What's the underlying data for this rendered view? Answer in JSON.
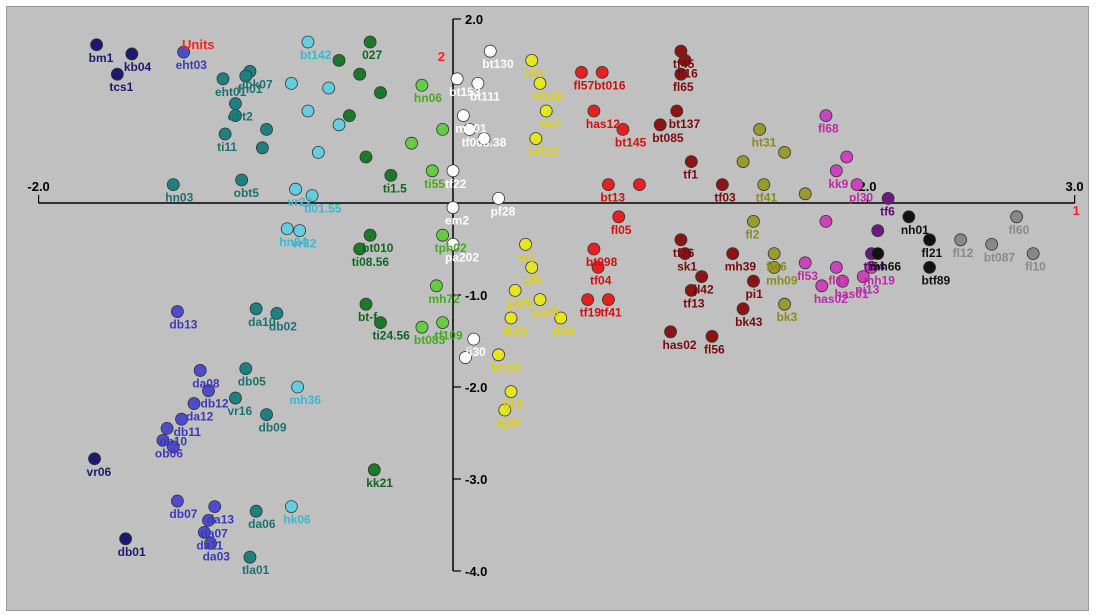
{
  "chart_data": {
    "type": "scatter",
    "title": "Units",
    "title_color": "#ff2020",
    "background": "#c0c0c0",
    "xlim": [
      -2.0,
      3.0
    ],
    "ylim": [
      -4.0,
      2.0
    ],
    "x_ticks": [
      {
        "v": -2.0,
        "label": "-2.0"
      },
      {
        "v": 2.0,
        "label": "2.0"
      },
      {
        "v": 3.0,
        "label": "3.0"
      }
    ],
    "y_ticks": [
      {
        "v": 2.0,
        "label": "2.0"
      },
      {
        "v": -1.0,
        "label": "-1.0"
      },
      {
        "v": -2.0,
        "label": "-2.0"
      },
      {
        "v": -3.0,
        "label": "-3.0"
      },
      {
        "v": -4.0,
        "label": "-4.0"
      }
    ],
    "axis_end_labels": {
      "x": "1",
      "y": "2",
      "color": "#ff2020"
    },
    "groups": [
      {
        "color": "#1a1a6e",
        "text_color": "#1a1a6e",
        "points": [
          {
            "x": -1.72,
            "y": 1.72,
            "label": "bm1"
          },
          {
            "x": -1.55,
            "y": 1.62,
            "label": "kb04"
          },
          {
            "x": -1.62,
            "y": 1.4,
            "label": "tcs1"
          },
          {
            "x": -1.73,
            "y": -2.78,
            "label": "vr06"
          },
          {
            "x": -1.58,
            "y": -3.65,
            "label": "db01"
          }
        ]
      },
      {
        "color": "#4d4dcc",
        "text_color": "#3a3ab8",
        "points": [
          {
            "x": -1.3,
            "y": 1.64,
            "label": "eht03"
          },
          {
            "x": -1.33,
            "y": -1.18,
            "label": "db13"
          },
          {
            "x": -1.22,
            "y": -1.82,
            "label": "da08"
          },
          {
            "x": -1.18,
            "y": -2.04,
            "label": "db12"
          },
          {
            "x": -1.25,
            "y": -2.18,
            "label": "da12"
          },
          {
            "x": -1.38,
            "y": -2.45,
            "label": "ob10"
          },
          {
            "x": -1.4,
            "y": -2.58,
            "label": "ob06"
          },
          {
            "x": -1.33,
            "y": -3.24,
            "label": "db07"
          },
          {
            "x": -1.15,
            "y": -3.3,
            "label": "da13"
          },
          {
            "x": -1.18,
            "y": -3.45,
            "label": "da07"
          },
          {
            "x": -1.2,
            "y": -3.58,
            "label": "da11"
          },
          {
            "x": -1.17,
            "y": -3.7,
            "label": "da03"
          },
          {
            "x": -1.31,
            "y": -2.35,
            "label": "db11"
          },
          {
            "x": -1.35,
            "y": -2.65,
            "label": ""
          }
        ]
      },
      {
        "color": "#1e8080",
        "text_color": "#1e7070",
        "points": [
          {
            "x": -0.98,
            "y": 1.43,
            "label": "lbk07"
          },
          {
            "x": -1.11,
            "y": 1.35,
            "label": "eht01"
          },
          {
            "x": -1.0,
            "y": 1.38,
            "label": "fh01"
          },
          {
            "x": -1.05,
            "y": 1.08,
            "label": "obt2"
          },
          {
            "x": -1.1,
            "y": 0.75,
            "label": "ti11"
          },
          {
            "x": -1.35,
            "y": 0.2,
            "label": "hn03"
          },
          {
            "x": -1.02,
            "y": 0.25,
            "label": "obt5"
          },
          {
            "x": -0.95,
            "y": -1.15,
            "label": "da10"
          },
          {
            "x": -0.85,
            "y": -1.2,
            "label": "db02"
          },
          {
            "x": -1.0,
            "y": -1.8,
            "label": "db05"
          },
          {
            "x": -1.05,
            "y": -2.12,
            "label": "vr16"
          },
          {
            "x": -0.9,
            "y": -2.3,
            "label": "db09"
          },
          {
            "x": -0.95,
            "y": -3.35,
            "label": "da06"
          },
          {
            "x": -0.98,
            "y": -3.85,
            "label": "tla01"
          },
          {
            "x": -0.9,
            "y": 0.8,
            "label": ""
          },
          {
            "x": -1.05,
            "y": 0.95,
            "label": ""
          },
          {
            "x": -0.92,
            "y": 0.6,
            "label": ""
          }
        ]
      },
      {
        "color": "#66cce0",
        "text_color": "#3ab8d0",
        "points": [
          {
            "x": -0.7,
            "y": 1.75,
            "label": "bt142"
          },
          {
            "x": -0.76,
            "y": 0.15,
            "label": "vr22"
          },
          {
            "x": -0.68,
            "y": 0.08,
            "label": "ti01.55"
          },
          {
            "x": -0.8,
            "y": -0.28,
            "label": "hn04"
          },
          {
            "x": -0.74,
            "y": -0.3,
            "label": "vr32"
          },
          {
            "x": -0.75,
            "y": -2.0,
            "label": "mh36"
          },
          {
            "x": -0.78,
            "y": -3.3,
            "label": "hk06"
          },
          {
            "x": -0.6,
            "y": 1.25,
            "label": ""
          },
          {
            "x": -0.7,
            "y": 1.0,
            "label": ""
          },
          {
            "x": -0.55,
            "y": 0.85,
            "label": ""
          },
          {
            "x": -0.78,
            "y": 1.3,
            "label": ""
          },
          {
            "x": -0.65,
            "y": 0.55,
            "label": ""
          }
        ]
      },
      {
        "color": "#1a7a2a",
        "text_color": "#116620",
        "points": [
          {
            "x": -0.4,
            "y": 1.75,
            "label": "027"
          },
          {
            "x": -0.55,
            "y": 1.55,
            "label": ""
          },
          {
            "x": -0.45,
            "y": 1.4,
            "label": ""
          },
          {
            "x": -0.35,
            "y": 1.2,
            "label": ""
          },
          {
            "x": -0.5,
            "y": 0.95,
            "label": ""
          },
          {
            "x": -0.42,
            "y": 0.5,
            "label": ""
          },
          {
            "x": -0.3,
            "y": 0.3,
            "label": "ti1.5"
          },
          {
            "x": -0.4,
            "y": -0.35,
            "label": "bt010"
          },
          {
            "x": -0.45,
            "y": -0.5,
            "label": "ti08.56"
          },
          {
            "x": -0.42,
            "y": -1.1,
            "label": "bt-f"
          },
          {
            "x": -0.35,
            "y": -1.3,
            "label": "ti24.56"
          },
          {
            "x": -0.38,
            "y": -2.9,
            "label": "kk21"
          }
        ]
      },
      {
        "color": "#66cc44",
        "text_color": "#44aa22",
        "points": [
          {
            "x": -0.15,
            "y": 1.28,
            "label": "hn06"
          },
          {
            "x": -0.05,
            "y": 0.8,
            "label": ""
          },
          {
            "x": -0.2,
            "y": 0.65,
            "label": ""
          },
          {
            "x": -0.1,
            "y": 0.35,
            "label": "ti55"
          },
          {
            "x": -0.05,
            "y": -0.35,
            "label": "tph02"
          },
          {
            "x": -0.08,
            "y": -0.9,
            "label": "mh72"
          },
          {
            "x": -0.15,
            "y": -1.35,
            "label": "bt083"
          },
          {
            "x": -0.05,
            "y": -1.3,
            "label": "tf109"
          }
        ]
      },
      {
        "color": "#ffffff",
        "text_color": "#ffffff",
        "points": [
          {
            "x": 0.18,
            "y": 1.65,
            "label": "bt130"
          },
          {
            "x": 0.02,
            "y": 1.35,
            "label": "bt153"
          },
          {
            "x": 0.12,
            "y": 1.3,
            "label": "bt111"
          },
          {
            "x": 0.05,
            "y": 0.95,
            "label": "mh01"
          },
          {
            "x": 0.08,
            "y": 0.8,
            "label": "tf003.38"
          },
          {
            "x": 0.0,
            "y": 0.35,
            "label": "tf22"
          },
          {
            "x": 0.0,
            "y": -0.05,
            "label": "em2"
          },
          {
            "x": 0.22,
            "y": 0.05,
            "label": "pf28"
          },
          {
            "x": 0.0,
            "y": -0.45,
            "label": "pa202"
          },
          {
            "x": 0.1,
            "y": -1.48,
            "label": "ji30"
          },
          {
            "x": 0.06,
            "y": -1.68,
            "label": ""
          },
          {
            "x": 0.15,
            "y": 0.7,
            "label": ""
          }
        ]
      },
      {
        "color": "#e6e620",
        "text_color": "#e0d010",
        "points": [
          {
            "x": 0.38,
            "y": 1.55,
            "label": "tf97"
          },
          {
            "x": 0.42,
            "y": 1.3,
            "label": "bt140"
          },
          {
            "x": 0.45,
            "y": 1.0,
            "label": "mc1"
          },
          {
            "x": 0.4,
            "y": 0.7,
            "label": "bt112"
          },
          {
            "x": 0.35,
            "y": -0.45,
            "label": "m1"
          },
          {
            "x": 0.38,
            "y": -0.7,
            "label": "pf0"
          },
          {
            "x": 0.3,
            "y": -0.95,
            "label": "pf29"
          },
          {
            "x": 0.42,
            "y": -1.05,
            "label": "pa28"
          },
          {
            "x": 0.28,
            "y": -1.25,
            "label": "tk22"
          },
          {
            "x": 0.52,
            "y": -1.25,
            "label": "tf44"
          },
          {
            "x": 0.22,
            "y": -1.65,
            "label": "bt151"
          },
          {
            "x": 0.28,
            "y": -2.05,
            "label": "lj18"
          },
          {
            "x": 0.25,
            "y": -2.25,
            "label": "bj09"
          }
        ]
      },
      {
        "color": "#e62020",
        "text_color": "#d01010",
        "points": [
          {
            "x": 0.62,
            "y": 1.42,
            "label": "fl57"
          },
          {
            "x": 0.72,
            "y": 1.42,
            "label": "bt016"
          },
          {
            "x": 0.68,
            "y": 1.0,
            "label": "has12"
          },
          {
            "x": 0.82,
            "y": 0.8,
            "label": "bt145"
          },
          {
            "x": 0.75,
            "y": 0.2,
            "label": "bt13"
          },
          {
            "x": 0.8,
            "y": -0.15,
            "label": "fl05"
          },
          {
            "x": 0.68,
            "y": -0.5,
            "label": "bt098"
          },
          {
            "x": 0.7,
            "y": -0.7,
            "label": "tf04"
          },
          {
            "x": 0.65,
            "y": -1.05,
            "label": "tf19"
          },
          {
            "x": 0.75,
            "y": -1.05,
            "label": "tf41"
          },
          {
            "x": 0.9,
            "y": 0.2,
            "label": ""
          }
        ]
      },
      {
        "color": "#8c1414",
        "text_color": "#7a0a0a",
        "points": [
          {
            "x": 1.1,
            "y": 1.65,
            "label": "tf45"
          },
          {
            "x": 1.12,
            "y": 1.55,
            "label": "fl16"
          },
          {
            "x": 1.1,
            "y": 1.4,
            "label": "fl65"
          },
          {
            "x": 1.08,
            "y": 1.0,
            "label": "bt137"
          },
          {
            "x": 1.0,
            "y": 0.85,
            "label": "bt085"
          },
          {
            "x": 1.15,
            "y": 0.45,
            "label": "tf1"
          },
          {
            "x": 1.1,
            "y": -0.4,
            "label": "tf26"
          },
          {
            "x": 1.12,
            "y": -0.55,
            "label": "sk1"
          },
          {
            "x": 1.2,
            "y": -0.8,
            "label": "jl42"
          },
          {
            "x": 1.15,
            "y": -0.95,
            "label": "tf13"
          },
          {
            "x": 1.35,
            "y": -0.55,
            "label": "mh39"
          },
          {
            "x": 1.45,
            "y": -0.85,
            "label": "pi1"
          },
          {
            "x": 1.4,
            "y": -1.15,
            "label": "bk43"
          },
          {
            "x": 1.05,
            "y": -1.4,
            "label": "has02"
          },
          {
            "x": 1.25,
            "y": -1.45,
            "label": "fl56"
          },
          {
            "x": 1.3,
            "y": 0.2,
            "label": "tf03"
          }
        ]
      },
      {
        "color": "#9a9a2e",
        "text_color": "#8a8a1e",
        "points": [
          {
            "x": 1.48,
            "y": 0.8,
            "label": "ht31"
          },
          {
            "x": 1.6,
            "y": 0.55,
            "label": ""
          },
          {
            "x": 1.5,
            "y": 0.2,
            "label": "tf41"
          },
          {
            "x": 1.45,
            "y": -0.2,
            "label": "fl2"
          },
          {
            "x": 1.55,
            "y": -0.55,
            "label": "fl46"
          },
          {
            "x": 1.55,
            "y": -0.7,
            "label": "mh09"
          },
          {
            "x": 1.6,
            "y": -1.1,
            "label": "bk3"
          },
          {
            "x": 1.4,
            "y": 0.45,
            "label": ""
          },
          {
            "x": 1.7,
            "y": 0.1,
            "label": ""
          }
        ]
      },
      {
        "color": "#cc44bb",
        "text_color": "#bb2aa8",
        "points": [
          {
            "x": 1.8,
            "y": 0.95,
            "label": "fl68"
          },
          {
            "x": 1.9,
            "y": 0.5,
            "label": ""
          },
          {
            "x": 1.85,
            "y": 0.35,
            "label": "kk9"
          },
          {
            "x": 1.95,
            "y": 0.2,
            "label": "pl30"
          },
          {
            "x": 1.7,
            "y": -0.65,
            "label": "fl53"
          },
          {
            "x": 1.85,
            "y": -0.7,
            "label": "fl13"
          },
          {
            "x": 1.78,
            "y": -0.9,
            "label": "has02"
          },
          {
            "x": 1.88,
            "y": -0.85,
            "label": "has01"
          },
          {
            "x": 1.98,
            "y": -0.8,
            "label": "pi13"
          },
          {
            "x": 2.02,
            "y": -0.7,
            "label": "mh19"
          },
          {
            "x": 1.8,
            "y": -0.2,
            "label": ""
          }
        ]
      },
      {
        "color": "#6a1a80",
        "text_color": "#5a0a70",
        "points": [
          {
            "x": 2.1,
            "y": 0.05,
            "label": "tf6"
          },
          {
            "x": 2.05,
            "y": -0.3,
            "label": ""
          },
          {
            "x": 2.02,
            "y": -0.55,
            "label": "tf54"
          }
        ]
      },
      {
        "color": "#111111",
        "text_color": "#111111",
        "points": [
          {
            "x": 2.2,
            "y": -0.15,
            "label": "nh01"
          },
          {
            "x": 2.3,
            "y": -0.4,
            "label": "fl21"
          },
          {
            "x": 2.05,
            "y": -0.55,
            "label": "mh66"
          },
          {
            "x": 2.3,
            "y": -0.7,
            "label": "btf89"
          }
        ]
      },
      {
        "color": "#888888",
        "text_color": "#8a8a8a",
        "points": [
          {
            "x": 2.72,
            "y": -0.15,
            "label": "fl60"
          },
          {
            "x": 2.45,
            "y": -0.4,
            "label": "fl12"
          },
          {
            "x": 2.6,
            "y": -0.45,
            "label": "bt087"
          },
          {
            "x": 2.8,
            "y": -0.55,
            "label": "fl10"
          }
        ]
      }
    ]
  }
}
